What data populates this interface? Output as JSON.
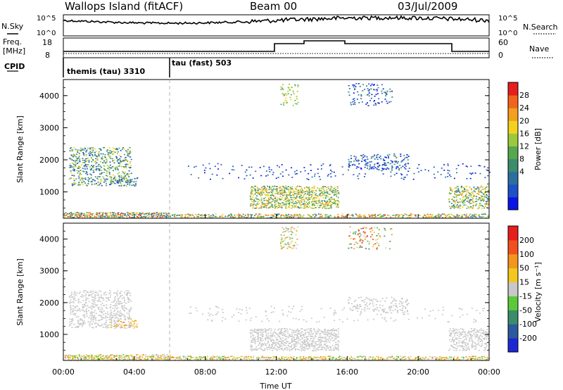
{
  "header": {
    "site": "Wallops Island (fitACF)",
    "beam": "Beam 00",
    "date": "03/Jul/2009"
  },
  "strip_labels": {
    "nsky": "N.Sky",
    "nsearch": "N.Search",
    "freq_top": "Freq.",
    "freq_unit": "[MHz]",
    "nave": "Nave",
    "cpid": "CPID"
  },
  "strip_ticks": {
    "nsky_left": [
      "10^5",
      "10^0"
    ],
    "nsky_right": [
      "10^5",
      "10^0"
    ],
    "freq_left": [
      "18",
      "8"
    ],
    "nave_right": [
      "60",
      "0"
    ]
  },
  "cpid_segments": [
    {
      "label": "themis (tau) 3310",
      "start_hour": 0,
      "end_hour": 6
    },
    {
      "label": "tau (fast) 503",
      "start_hour": 6,
      "end_hour": 24
    }
  ],
  "chart_data": [
    {
      "type": "heatmap",
      "name": "power",
      "ylabel": "Slant Range [km]",
      "xlabel": "",
      "xlim_hours": [
        0,
        24
      ],
      "ylim": [
        180,
        4500
      ],
      "yticks": [
        1000,
        2000,
        3000,
        4000
      ],
      "colorbar": {
        "label": "Power [dB]",
        "ticks": [
          "28",
          "24",
          "20",
          "16",
          "12",
          "8",
          "4"
        ],
        "colors": [
          "#0a14e6",
          "#1e50c8",
          "#2c6e9e",
          "#3c8c6e",
          "#56a84e",
          "#9cc83c",
          "#f2d21e",
          "#f2a01e",
          "#f2641e",
          "#e61e1e"
        ]
      }
    },
    {
      "type": "heatmap",
      "name": "velocity",
      "ylabel": "Slant Range [km]",
      "xlabel": "Time UT",
      "xlim_hours": [
        0,
        24
      ],
      "ylim": [
        180,
        4500
      ],
      "yticks": [
        1000,
        2000,
        3000,
        4000
      ],
      "xticks": [
        "00:00",
        "04:00",
        "08:00",
        "12:00",
        "16:00",
        "20:00",
        "00:00"
      ],
      "colorbar": {
        "label": "Velocity [m s⁻¹]",
        "ticks": [
          "200",
          "100",
          "50",
          "15",
          "-15",
          "-50",
          "-100",
          "-200"
        ],
        "colors": [
          "#1e28d2",
          "#2a5a9c",
          "#3a8c6a",
          "#5cc83a",
          "#c8c8c8",
          "#f2c81e",
          "#f2961e",
          "#f2501e",
          "#e61e1e"
        ]
      }
    }
  ]
}
